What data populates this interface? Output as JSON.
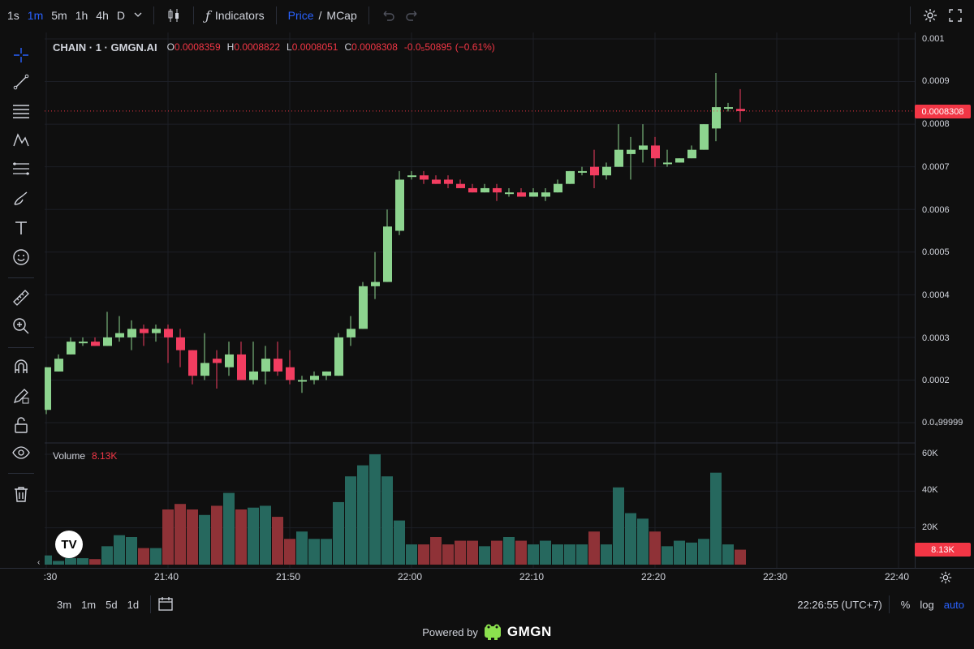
{
  "toolbar": {
    "timeframes": [
      "1s",
      "1m",
      "5m",
      "1h",
      "4h",
      "D"
    ],
    "active_timeframe": "1m",
    "indicators_label": "Indicators",
    "price_label": "Price",
    "slash": "/",
    "mcap_label": "MCap"
  },
  "legend": {
    "symbol": "CHAIN · 1 · GMGN.AI",
    "open_label": "O",
    "open": "0.0008359",
    "high_label": "H",
    "high": "0.0008822",
    "low_label": "L",
    "low": "0.0008051",
    "close_label": "C",
    "close": "0.0008308",
    "change": "-0.0₅50895",
    "change_pct": "(−0.61%)"
  },
  "volume_legend": {
    "label": "Volume",
    "value": "8.13K"
  },
  "price_axis": {
    "ticks": [
      "0.001",
      "0.0009",
      "0.0008",
      "0.0007",
      "0.0006",
      "0.0005",
      "0.0004",
      "0.0003",
      "0.0002",
      "0.0₄99999"
    ],
    "last_price": "0.0008308"
  },
  "volume_axis": {
    "ticks": [
      "60K",
      "40K",
      "20K"
    ],
    "last_volume": "8.13K"
  },
  "time_axis": {
    "ticks": [
      ":30",
      "21:40",
      "21:50",
      "22:00",
      "22:10",
      "22:20",
      "22:30",
      "22:40"
    ]
  },
  "bottom": {
    "ranges": [
      "3m",
      "1m",
      "5d",
      "1d"
    ],
    "clock": "22:26:55 (UTC+7)",
    "percent": "%",
    "log": "log",
    "auto": "auto"
  },
  "footer": {
    "powered_by": "Powered by",
    "brand": "GMGN"
  },
  "tv_logo": "TV",
  "colors": {
    "up": "#8dd48f",
    "down": "#f23d60",
    "vol_up": "#26685e",
    "vol_down": "#8f3237",
    "accent": "#2962ff"
  },
  "chart_data": {
    "type": "candlestick",
    "symbol": "CHAIN · 1 · GMGN.AI",
    "interval": "1m",
    "x_start": "21:30",
    "price_range": [
      0.0001,
      0.001
    ],
    "volume_range": [
      0,
      60000
    ],
    "candles": [
      {
        "o": 0.00013,
        "h": 0.00023,
        "l": 0.00012,
        "c": 0.00023,
        "v": 5000
      },
      {
        "o": 0.00022,
        "h": 0.00026,
        "l": 0.00022,
        "c": 0.00025,
        "v": 2000
      },
      {
        "o": 0.00026,
        "h": 0.0003,
        "l": 0.00026,
        "c": 0.00029,
        "v": 3500
      },
      {
        "o": 0.00029,
        "h": 0.0003,
        "l": 0.00028,
        "c": 0.00029,
        "v": 3500
      },
      {
        "o": 0.00029,
        "h": 0.0003,
        "l": 0.00028,
        "c": 0.00028,
        "v": 3000
      },
      {
        "o": 0.00028,
        "h": 0.00036,
        "l": 0.00028,
        "c": 0.0003,
        "v": 10000
      },
      {
        "o": 0.0003,
        "h": 0.00035,
        "l": 0.00029,
        "c": 0.00031,
        "v": 16000
      },
      {
        "o": 0.0003,
        "h": 0.00034,
        "l": 0.00027,
        "c": 0.00032,
        "v": 15000
      },
      {
        "o": 0.00032,
        "h": 0.00033,
        "l": 0.00028,
        "c": 0.00031,
        "v": 9000
      },
      {
        "o": 0.00031,
        "h": 0.00033,
        "l": 0.00029,
        "c": 0.00032,
        "v": 9000
      },
      {
        "o": 0.00032,
        "h": 0.00033,
        "l": 0.00024,
        "c": 0.0003,
        "v": 30000
      },
      {
        "o": 0.0003,
        "h": 0.00032,
        "l": 0.00023,
        "c": 0.00027,
        "v": 33000
      },
      {
        "o": 0.00027,
        "h": 0.00027,
        "l": 0.00019,
        "c": 0.00021,
        "v": 30000
      },
      {
        "o": 0.00021,
        "h": 0.00031,
        "l": 0.0002,
        "c": 0.00024,
        "v": 27000
      },
      {
        "o": 0.00025,
        "h": 0.00027,
        "l": 0.00018,
        "c": 0.00024,
        "v": 32000
      },
      {
        "o": 0.00023,
        "h": 0.00029,
        "l": 0.00021,
        "c": 0.00026,
        "v": 39000
      },
      {
        "o": 0.00026,
        "h": 0.00029,
        "l": 0.0002,
        "c": 0.0002,
        "v": 30000
      },
      {
        "o": 0.0002,
        "h": 0.00029,
        "l": 0.00019,
        "c": 0.00022,
        "v": 31000
      },
      {
        "o": 0.00022,
        "h": 0.00028,
        "l": 0.00019,
        "c": 0.00025,
        "v": 32000
      },
      {
        "o": 0.00025,
        "h": 0.00029,
        "l": 0.00021,
        "c": 0.00022,
        "v": 26000
      },
      {
        "o": 0.00023,
        "h": 0.00027,
        "l": 0.00019,
        "c": 0.0002,
        "v": 14000
      },
      {
        "o": 0.0002,
        "h": 0.00021,
        "l": 0.00017,
        "c": 0.0002,
        "v": 18000
      },
      {
        "o": 0.0002,
        "h": 0.00022,
        "l": 0.00019,
        "c": 0.00021,
        "v": 14000
      },
      {
        "o": 0.00021,
        "h": 0.00022,
        "l": 0.0002,
        "c": 0.00022,
        "v": 14000
      },
      {
        "o": 0.00021,
        "h": 0.00031,
        "l": 0.00021,
        "c": 0.0003,
        "v": 34000
      },
      {
        "o": 0.0003,
        "h": 0.00035,
        "l": 0.00028,
        "c": 0.00032,
        "v": 48000
      },
      {
        "o": 0.00032,
        "h": 0.00043,
        "l": 0.00032,
        "c": 0.00042,
        "v": 54000
      },
      {
        "o": 0.00042,
        "h": 0.0005,
        "l": 0.00039,
        "c": 0.00043,
        "v": 60000
      },
      {
        "o": 0.00043,
        "h": 0.0006,
        "l": 0.00043,
        "c": 0.00056,
        "v": 48000
      },
      {
        "o": 0.00055,
        "h": 0.00069,
        "l": 0.00054,
        "c": 0.00067,
        "v": 24000
      },
      {
        "o": 0.00068,
        "h": 0.00069,
        "l": 0.00067,
        "c": 0.00068,
        "v": 11000
      },
      {
        "o": 0.00068,
        "h": 0.00069,
        "l": 0.00066,
        "c": 0.00067,
        "v": 11000
      },
      {
        "o": 0.00067,
        "h": 0.00068,
        "l": 0.00066,
        "c": 0.00066,
        "v": 15000
      },
      {
        "o": 0.00067,
        "h": 0.00068,
        "l": 0.00065,
        "c": 0.00066,
        "v": 11000
      },
      {
        "o": 0.00066,
        "h": 0.00067,
        "l": 0.00065,
        "c": 0.00065,
        "v": 13000
      },
      {
        "o": 0.00065,
        "h": 0.00066,
        "l": 0.00064,
        "c": 0.00064,
        "v": 13000
      },
      {
        "o": 0.00064,
        "h": 0.00066,
        "l": 0.00064,
        "c": 0.00065,
        "v": 10000
      },
      {
        "o": 0.00065,
        "h": 0.00066,
        "l": 0.00062,
        "c": 0.00064,
        "v": 13000
      },
      {
        "o": 0.00064,
        "h": 0.00065,
        "l": 0.00063,
        "c": 0.00064,
        "v": 15000
      },
      {
        "o": 0.00064,
        "h": 0.00065,
        "l": 0.00063,
        "c": 0.00063,
        "v": 13000
      },
      {
        "o": 0.00063,
        "h": 0.00065,
        "l": 0.00063,
        "c": 0.00064,
        "v": 11000
      },
      {
        "o": 0.00063,
        "h": 0.00065,
        "l": 0.00062,
        "c": 0.00064,
        "v": 13000
      },
      {
        "o": 0.00064,
        "h": 0.00067,
        "l": 0.00064,
        "c": 0.00066,
        "v": 11000
      },
      {
        "o": 0.00066,
        "h": 0.00069,
        "l": 0.00066,
        "c": 0.00069,
        "v": 11000
      },
      {
        "o": 0.00069,
        "h": 0.0007,
        "l": 0.00068,
        "c": 0.00069,
        "v": 11000
      },
      {
        "o": 0.0007,
        "h": 0.00074,
        "l": 0.00065,
        "c": 0.00068,
        "v": 18000
      },
      {
        "o": 0.00068,
        "h": 0.00071,
        "l": 0.00067,
        "c": 0.0007,
        "v": 11000
      },
      {
        "o": 0.0007,
        "h": 0.0008,
        "l": 0.0007,
        "c": 0.00074,
        "v": 42000
      },
      {
        "o": 0.00073,
        "h": 0.00077,
        "l": 0.00067,
        "c": 0.00074,
        "v": 28000
      },
      {
        "o": 0.00074,
        "h": 0.0008,
        "l": 0.00071,
        "c": 0.00075,
        "v": 25000
      },
      {
        "o": 0.00075,
        "h": 0.00077,
        "l": 0.0007,
        "c": 0.00072,
        "v": 18000
      },
      {
        "o": 0.00071,
        "h": 0.00074,
        "l": 0.0007,
        "c": 0.00071,
        "v": 10000
      },
      {
        "o": 0.00071,
        "h": 0.00072,
        "l": 0.00071,
        "c": 0.00072,
        "v": 13000
      },
      {
        "o": 0.00072,
        "h": 0.00075,
        "l": 0.00072,
        "c": 0.00074,
        "v": 12000
      },
      {
        "o": 0.00074,
        "h": 0.0008,
        "l": 0.00074,
        "c": 0.0008,
        "v": 14000
      },
      {
        "o": 0.00079,
        "h": 0.00092,
        "l": 0.00076,
        "c": 0.00084,
        "v": 50000
      },
      {
        "o": 0.00084,
        "h": 0.00085,
        "l": 0.00083,
        "c": 0.00084,
        "v": 11000
      },
      {
        "o": 0.0008359,
        "h": 0.0008822,
        "l": 0.0008051,
        "c": 0.0008308,
        "v": 8130
      }
    ]
  }
}
